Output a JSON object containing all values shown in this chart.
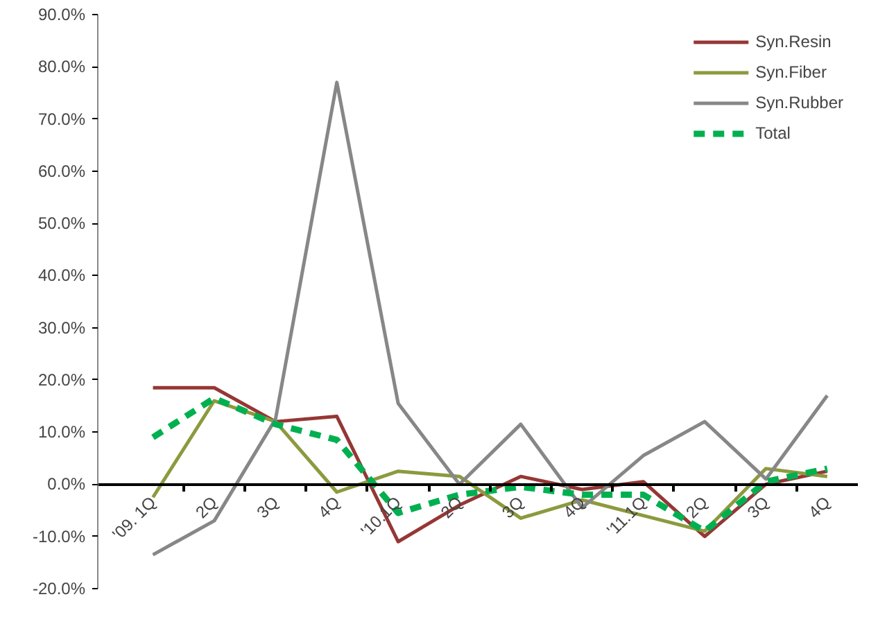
{
  "chart_data": {
    "type": "line",
    "categories": [
      "'09. 1Q",
      "2Q",
      "3Q",
      "4Q",
      "'10.1Q",
      "2Q",
      "3Q",
      "4Q",
      "'11.1Q",
      "2Q",
      "3Q",
      "4Q"
    ],
    "series": [
      {
        "name": "Syn.Resin",
        "color": "#953735",
        "line_style": "solid",
        "values": [
          18.5,
          18.5,
          12,
          13,
          -11,
          -4,
          1.5,
          -1,
          0.5,
          -10,
          0,
          2.5
        ]
      },
      {
        "name": "Syn.Fiber",
        "color": "#8c9a3e",
        "line_style": "solid",
        "values": [
          -2.5,
          16,
          12,
          -1.5,
          2.5,
          1.5,
          -6.5,
          -3,
          -6,
          -9,
          3,
          1.5
        ]
      },
      {
        "name": "Syn.Rubber",
        "color": "#878787",
        "line_style": "solid",
        "values": [
          -13.5,
          -7,
          12.5,
          77,
          15.5,
          0,
          11.5,
          -4.5,
          5.5,
          12,
          1,
          17
        ]
      },
      {
        "name": "Total",
        "color": "#00b050",
        "line_style": "dashed",
        "values": [
          9,
          16.5,
          11.5,
          8.5,
          -5.5,
          -2,
          -0.5,
          -2,
          -2,
          -9,
          0.5,
          3
        ]
      }
    ],
    "ylim": [
      -20,
      90
    ],
    "yticks": [
      {
        "value": -20,
        "label": "-20.0%"
      },
      {
        "value": -10,
        "label": "-10.0%"
      },
      {
        "value": 0,
        "label": "0.0%"
      },
      {
        "value": 10,
        "label": "10.0%"
      },
      {
        "value": 20,
        "label": "20.0%"
      },
      {
        "value": 30,
        "label": "30.0%"
      },
      {
        "value": 40,
        "label": "40.0%"
      },
      {
        "value": 50,
        "label": "50.0%"
      },
      {
        "value": 60,
        "label": "60.0%"
      },
      {
        "value": 70,
        "label": "70.0%"
      },
      {
        "value": 80,
        "label": "80.0%"
      },
      {
        "value": 90,
        "label": "90.0%"
      }
    ],
    "grid": false,
    "legend": "top right",
    "marker": "none"
  }
}
